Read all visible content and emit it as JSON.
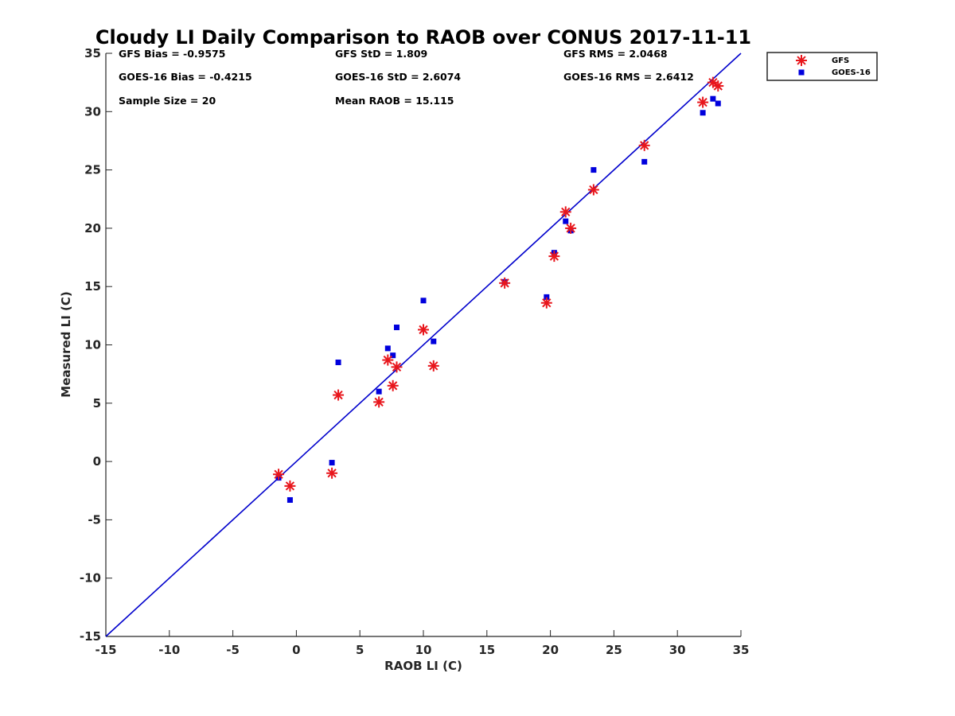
{
  "chart_data": {
    "type": "scatter",
    "title": "Cloudy LI Daily Comparison to RAOB over CONUS 2017-11-11",
    "xlabel": "RAOB LI (C)",
    "ylabel": "Measured LI (C)",
    "xlim": [
      -15,
      35
    ],
    "ylim": [
      -15,
      35
    ],
    "xticks": [
      -15,
      -10,
      -5,
      0,
      5,
      10,
      15,
      20,
      25,
      30,
      35
    ],
    "yticks": [
      -15,
      -10,
      -5,
      0,
      5,
      10,
      15,
      20,
      25,
      30,
      35
    ],
    "grid": false,
    "legend_position": "top-right outside",
    "reference_line": {
      "from": [
        -15,
        -15
      ],
      "to": [
        35,
        35
      ],
      "color": "#0000cc"
    },
    "stats": [
      [
        "GFS Bias = -0.9575",
        "GFS StD = 1.809",
        "GFS RMS = 2.0468"
      ],
      [
        "GOES-16 Bias = -0.4215",
        "GOES-16 StD = 2.6074",
        "GOES-16 RMS = 2.6412"
      ],
      [
        "Sample Size = 20",
        "Mean RAOB = 15.115",
        ""
      ]
    ],
    "series": [
      {
        "name": "GFS",
        "marker": "asterisk",
        "color": "#e8161c",
        "points": [
          [
            -1.4,
            -1.1
          ],
          [
            -0.5,
            -2.1
          ],
          [
            2.8,
            -1.0
          ],
          [
            3.3,
            5.7
          ],
          [
            6.5,
            5.1
          ],
          [
            7.2,
            8.7
          ],
          [
            7.6,
            6.5
          ],
          [
            7.9,
            8.1
          ],
          [
            10.0,
            11.3
          ],
          [
            10.8,
            8.2
          ],
          [
            16.4,
            15.3
          ],
          [
            19.7,
            13.6
          ],
          [
            20.3,
            17.6
          ],
          [
            21.2,
            21.4
          ],
          [
            21.6,
            20.0
          ],
          [
            23.4,
            23.3
          ],
          [
            27.4,
            27.1
          ],
          [
            32.0,
            30.8
          ],
          [
            32.8,
            32.5
          ],
          [
            33.2,
            32.2
          ]
        ]
      },
      {
        "name": "GOES-16",
        "marker": "square",
        "color": "#0000dd",
        "points": [
          [
            -1.4,
            -1.4
          ],
          [
            -0.5,
            -3.3
          ],
          [
            2.8,
            -0.1
          ],
          [
            3.3,
            8.5
          ],
          [
            6.5,
            6.0
          ],
          [
            7.2,
            9.7
          ],
          [
            7.6,
            9.1
          ],
          [
            7.9,
            11.5
          ],
          [
            10.0,
            13.8
          ],
          [
            10.8,
            10.3
          ],
          [
            16.4,
            15.4
          ],
          [
            19.7,
            14.1
          ],
          [
            20.3,
            17.9
          ],
          [
            21.2,
            20.6
          ],
          [
            21.6,
            19.8
          ],
          [
            23.4,
            25.0
          ],
          [
            27.4,
            25.7
          ],
          [
            32.0,
            29.9
          ],
          [
            32.8,
            31.1
          ],
          [
            33.2,
            30.7
          ]
        ]
      }
    ]
  }
}
